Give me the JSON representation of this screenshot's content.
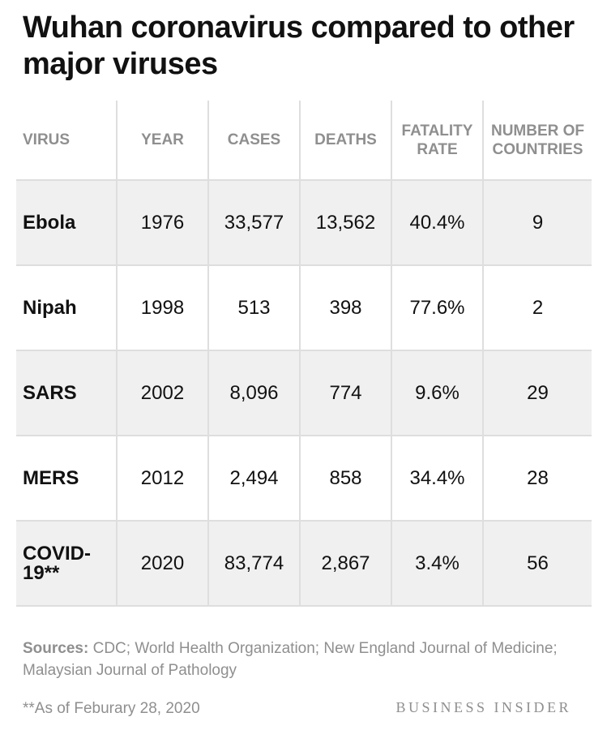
{
  "chart_data": {
    "type": "table",
    "title": "Wuhan coronavirus compared to other major viruses",
    "columns": [
      "VIRUS",
      "YEAR",
      "CASES",
      "DEATHS",
      "FATALITY RATE",
      "NUMBER OF COUNTRIES"
    ],
    "rows": [
      [
        "Ebola",
        "1976",
        "33,577",
        "13,562",
        "40.4%",
        "9"
      ],
      [
        "Nipah",
        "1998",
        "513",
        "398",
        "77.6%",
        "2"
      ],
      [
        "SARS",
        "2002",
        "8,096",
        "774",
        "9.6%",
        "29"
      ],
      [
        "MERS",
        "2012",
        "2,494",
        "858",
        "34.4%",
        "28"
      ],
      [
        "COVID-19**",
        "2020",
        "83,774",
        "2,867",
        "3.4%",
        "56"
      ]
    ],
    "sources_label": "Sources:",
    "sources_text": "CDC; World Health Organization; New England Journal of Medicine; Malaysian Journal of Pathology",
    "footnote": "**As of Feburary 28, 2020",
    "brand": "BUSINESS INSIDER"
  },
  "colors": {
    "header_text": "#8f8f8f",
    "row_shade": "#f0f0f0",
    "grid": "#dedede",
    "text": "#111111"
  }
}
